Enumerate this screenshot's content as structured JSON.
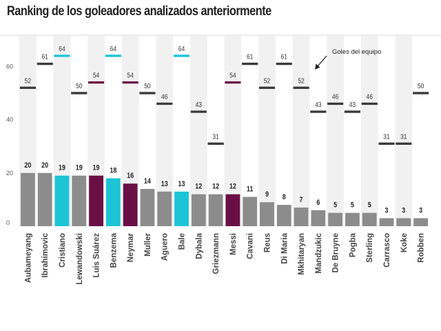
{
  "chart_data": {
    "type": "bar",
    "title": "Ranking de los goleadores analizados anteriormente",
    "xlabel": "",
    "ylabel": "",
    "ylim": [
      0,
      70
    ],
    "yticks": [
      0,
      20,
      40,
      60
    ],
    "grid": "vertical alternating bands",
    "legend": "none",
    "annotation": "Goles del equipo",
    "categories": [
      "Aubameyang",
      "Ibrahimovic",
      "Cristiano",
      "Lewandowski",
      "Luis Suárez",
      "Benzema",
      "Neymar",
      "Muller",
      "Aguero",
      "Bale",
      "Dybala",
      "Griezmann",
      "Messi",
      "Cavani",
      "Reus",
      "Di Maria",
      "Mkhitaryan",
      "Mandzukic",
      "De Bruyne",
      "Pogba",
      "Sterling",
      "Carrasco",
      "Koke",
      "Robben"
    ],
    "series": [
      {
        "values": [
          20,
          20,
          19,
          19,
          19,
          18,
          16,
          14,
          13,
          13,
          12,
          12,
          12,
          11,
          9,
          8,
          7,
          6,
          5,
          5,
          5,
          3,
          3,
          3
        ]
      },
      {
        "values": [
          52,
          61,
          64,
          50,
          54,
          64,
          54,
          50,
          46,
          64,
          43,
          31,
          54,
          61,
          52,
          61,
          52,
          43,
          46,
          43,
          46,
          31,
          31,
          50
        ]
      }
    ],
    "bar_colors": [
      "#8c8c8c",
      "#8c8c8c",
      "#1cc4d6",
      "#8c8c8c",
      "#6a0f46",
      "#1cc4d6",
      "#6a0f46",
      "#8c8c8c",
      "#8c8c8c",
      "#1cc4d6",
      "#8c8c8c",
      "#8c8c8c",
      "#6a0f46",
      "#8c8c8c",
      "#8c8c8c",
      "#8c8c8c",
      "#8c8c8c",
      "#8c8c8c",
      "#8c8c8c",
      "#8c8c8c",
      "#8c8c8c",
      "#8c8c8c",
      "#8c8c8c",
      "#8c8c8c"
    ],
    "marker_colors": [
      "#3a3a3a",
      "#3a3a3a",
      "#1cc4d6",
      "#3a3a3a",
      "#6a0f46",
      "#1cc4d6",
      "#6a0f46",
      "#3a3a3a",
      "#3a3a3a",
      "#1cc4d6",
      "#3a3a3a",
      "#3a3a3a",
      "#6a0f46",
      "#3a3a3a",
      "#3a3a3a",
      "#3a3a3a",
      "#3a3a3a",
      "#3a3a3a",
      "#3a3a3a",
      "#3a3a3a",
      "#3a3a3a",
      "#3a3a3a",
      "#3a3a3a",
      "#3a3a3a"
    ],
    "band_color": "#f1f1f1"
  }
}
